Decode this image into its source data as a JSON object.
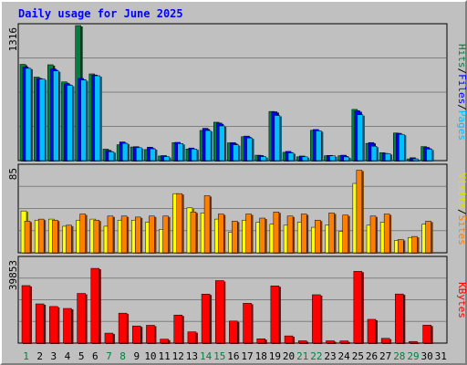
{
  "chart_data": {
    "type": "bar",
    "title": "Daily usage for June 2025",
    "categories": [
      "1",
      "2",
      "3",
      "4",
      "5",
      "6",
      "7",
      "8",
      "9",
      "10",
      "11",
      "12",
      "13",
      "14",
      "15",
      "16",
      "17",
      "18",
      "19",
      "20",
      "21",
      "22",
      "23",
      "24",
      "25",
      "26",
      "27",
      "28",
      "29",
      "30",
      "31"
    ],
    "weekend_days": [
      "1",
      "7",
      "8",
      "14",
      "15",
      "21",
      "22",
      "28",
      "29"
    ],
    "panels": [
      {
        "id": "top",
        "ymax_label": "1316",
        "ylim": [
          0,
          1316
        ],
        "grid": true,
        "right_labels": [
          {
            "text": "Hits",
            "color": "#008040"
          },
          {
            "text": "/",
            "color": "#000000"
          },
          {
            "text": "Files",
            "color": "#0000ff"
          },
          {
            "text": "/",
            "color": "#000000"
          },
          {
            "text": "Pages",
            "color": "#00c0ff"
          }
        ],
        "series": [
          {
            "name": "Hits",
            "color": "#008040",
            "values": [
              938,
              814,
              934,
              767,
              1316,
              845,
              112,
              155,
              133,
              108,
              45,
              175,
              113,
              294,
              374,
              173,
              233,
              53,
              479,
              81,
              37,
              296,
              48,
              48,
              499,
              168,
              77,
              269,
              17,
              137,
              0
            ]
          },
          {
            "name": "Files",
            "color": "#0000ff",
            "values": [
              912,
              800,
              894,
              749,
              801,
              834,
              100,
              182,
              136,
              131,
              49,
              178,
              123,
              315,
              366,
              175,
              239,
              50,
              476,
              90,
              45,
              303,
              51,
              53,
              484,
              176,
              71,
              266,
              28,
              129,
              0
            ]
          },
          {
            "name": "Pages",
            "color": "#00c0ff",
            "values": [
              899,
              795,
              874,
              734,
              786,
              827,
              86,
              168,
              126,
              115,
              39,
              166,
              113,
              293,
              338,
              155,
              221,
              39,
              440,
              75,
              37,
              290,
              47,
              36,
              447,
              140,
              68,
              256,
              17,
              112,
              0
            ]
          }
        ]
      },
      {
        "id": "middle",
        "ymax_label": "85",
        "ylim": [
          0,
          85
        ],
        "grid": true,
        "right_labels": [
          {
            "text": "Visits",
            "color": "#e0e000"
          },
          {
            "text": "/",
            "color": "#000000"
          },
          {
            "text": "Sites",
            "color": "#ff8000"
          }
        ],
        "series": [
          {
            "name": "Visits",
            "color": "#ffff00",
            "values": [
              41,
              32,
              33,
              26,
              32,
              33,
              26,
              32,
              32,
              30,
              23,
              58,
              44,
              39,
              33,
              20,
              32,
              30,
              28,
              27,
              30,
              25,
              27,
              21,
              68,
              27,
              30,
              12,
              15,
              28,
              0
            ]
          },
          {
            "name": "Sites",
            "color": "#ff8000",
            "values": [
              31,
              33,
              32,
              27,
              38,
              32,
              36,
              36,
              35,
              36,
              36,
              58,
              40,
              56,
              38,
              31,
              38,
              34,
              40,
              36,
              38,
              32,
              39,
              37,
              81,
              36,
              38,
              13,
              16,
              31,
              0
            ]
          }
        ]
      },
      {
        "id": "bottom",
        "ymax_label": "39853",
        "ylim": [
          0,
          39853
        ],
        "grid": true,
        "right_labels": [
          {
            "text": "KBytes",
            "color": "#ff0000"
          }
        ],
        "series": [
          {
            "name": "KBytes",
            "color": "#ff0000",
            "values": [
              27020,
              18425,
              17200,
              16285,
              23340,
              35110,
              4690,
              14065,
              8060,
              8375,
              1850,
              13190,
              5310,
              23030,
              29360,
              10360,
              18715,
              2035,
              26880,
              3385,
              1080,
              22725,
              1080,
              1035,
              33720,
              11165,
              2240,
              23070,
              780,
              8450,
              0
            ]
          }
        ]
      }
    ]
  }
}
